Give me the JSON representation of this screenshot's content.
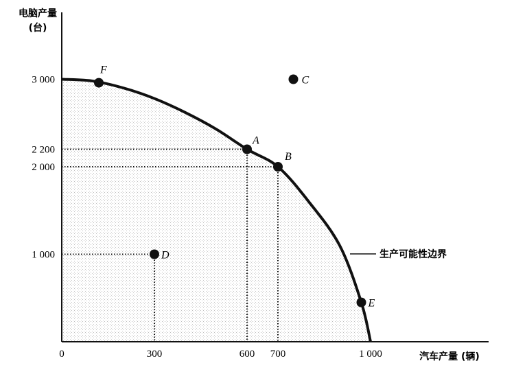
{
  "chart_data": {
    "type": "line",
    "x_axis": {
      "label": "汽车产量 (辆)",
      "range": [
        0,
        1380
      ],
      "ticks": [
        "0",
        "300",
        "600",
        "700",
        "1 000"
      ]
    },
    "y_axis": {
      "label_line1": "电脑产量",
      "label_line2": "(台)",
      "range": [
        0,
        3950
      ],
      "ticks": [
        "1 000",
        "2 000",
        "2 200",
        "3 000"
      ]
    },
    "series": [
      {
        "name": "生产可能性边界",
        "type": "curve",
        "points": [
          [
            0,
            3000
          ],
          [
            100,
            2980
          ],
          [
            200,
            2900
          ],
          [
            300,
            2780
          ],
          [
            400,
            2620
          ],
          [
            500,
            2430
          ],
          [
            600,
            2200
          ],
          [
            700,
            2000
          ],
          [
            800,
            1600
          ],
          [
            900,
            1100
          ],
          [
            970,
            450
          ],
          [
            1000,
            0
          ]
        ]
      }
    ],
    "points": [
      {
        "label": "A",
        "x": 600,
        "y": 2200
      },
      {
        "label": "B",
        "x": 700,
        "y": 2000
      },
      {
        "label": "C",
        "x": 750,
        "y": 3000
      },
      {
        "label": "D",
        "x": 300,
        "y": 1000
      },
      {
        "label": "E",
        "x": 970,
        "y": 450
      },
      {
        "label": "F",
        "x": 120,
        "y": 2960
      }
    ],
    "annotation": "生产可能性边界",
    "grid": false
  }
}
